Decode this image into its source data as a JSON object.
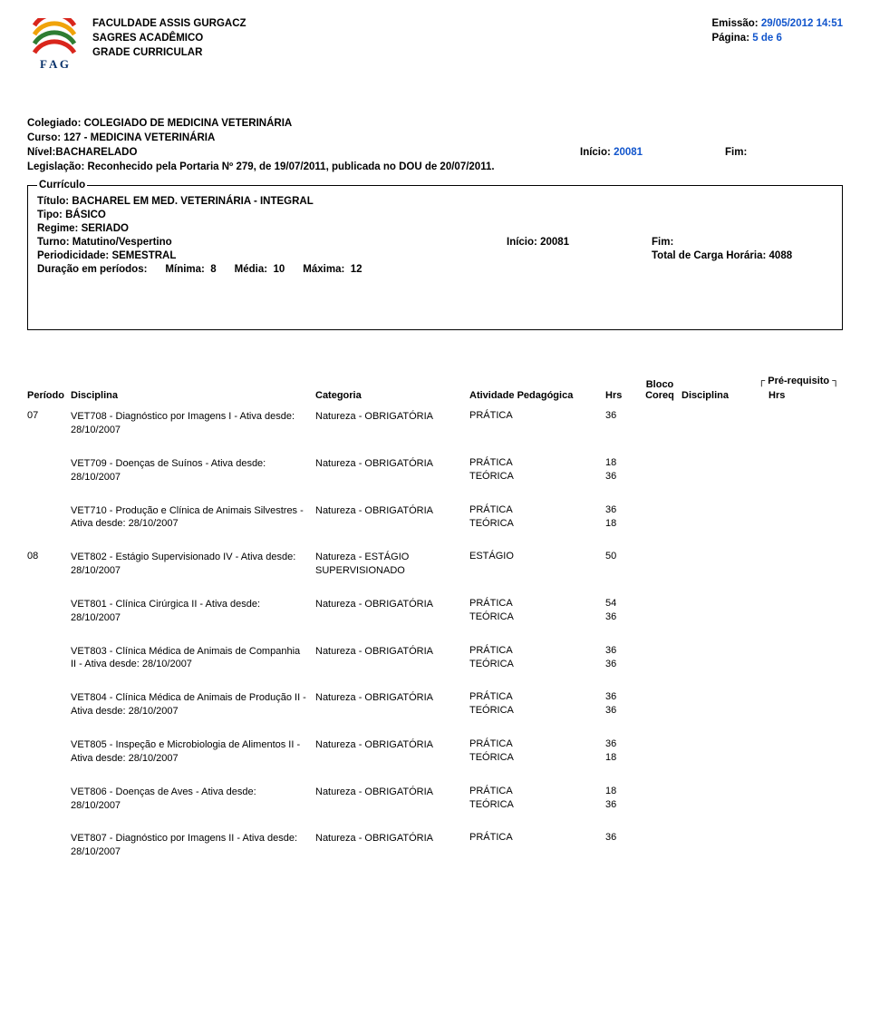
{
  "colors": {
    "link_blue": "#1155cc",
    "text": "#000000",
    "bg": "#ffffff"
  },
  "header": {
    "org": "FACULDADE ASSIS GURGACZ",
    "system": "SAGRES ACADÊMICO",
    "title": "GRADE CURRICULAR",
    "emissao_label": "Emissão:",
    "emissao_value": "29/05/2012 14:51",
    "pagina_label": "Página:",
    "pagina_value": "5 de 6",
    "logo_text": "F A G",
    "logo_arc_colors": [
      "#d9261c",
      "#f0a30a",
      "#2e7d32",
      "#d9261c"
    ]
  },
  "course": {
    "colegiado_label": "Colegiado:",
    "colegiado": "COLEGIADO DE MEDICINA VETERINÁRIA",
    "curso_label": "Curso:",
    "curso": "127 - MEDICINA VETERINÁRIA",
    "nivel_label": "Nível:",
    "nivel": "BACHARELADO",
    "inicio_label": "Início:",
    "inicio": "20081",
    "fim_label": "Fim:",
    "legis_label": "Legislação:",
    "legis": "Reconhecido pela Portaria Nº 279, de 19/07/2011, publicada no DOU de 20/07/2011."
  },
  "curriculo": {
    "legend": "Currículo",
    "titulo_label": "Título:",
    "titulo": "BACHAREL EM MED. VETERINÁRIA - INTEGRAL",
    "tipo_label": "Tipo:",
    "tipo": "BÁSICO",
    "regime_label": "Regime:",
    "regime": "SERIADO",
    "turno_label": "Turno:",
    "turno": "Matutino/Vespertino",
    "inicio_label": "Início:",
    "inicio": "20081",
    "fim_label": "Fim:",
    "period_label": "Periodicidade:",
    "period": "SEMESTRAL",
    "carga_label": "Total de Carga Horária:",
    "carga": "4088",
    "dur_label": "Duração em períodos:",
    "minima_label": "Mínima:",
    "minima": "8",
    "media_label": "Média:",
    "media": "10",
    "maxima_label": "Máxima:",
    "maxima": "12"
  },
  "table": {
    "bloco_top": "Bloco",
    "pre_req": "Pré-requisito",
    "cols": {
      "periodo": "Período",
      "disciplina": "Disciplina",
      "categoria": "Categoria",
      "atividade": "Atividade Pedagógica",
      "hrs": "Hrs",
      "coreq": "Coreq",
      "disciplina2": "Disciplina",
      "hrs2": "Hrs"
    }
  },
  "labels": {
    "pratica": "PRÁTICA",
    "teorica": "TEÓRICA",
    "estagio": "ESTÁGIO"
  },
  "rows": [
    {
      "periodo": "07",
      "disc": "VET708 - Diagnóstico por Imagens I - Ativa desde: 28/10/2007",
      "cat": "Natureza - OBRIGATÓRIA",
      "ativ": [
        {
          "t": "PRÁTICA",
          "h": "36"
        }
      ]
    },
    {
      "periodo": "",
      "disc": "VET709 - Doenças de Suínos - Ativa desde: 28/10/2007",
      "cat": "Natureza - OBRIGATÓRIA",
      "ativ": [
        {
          "t": "PRÁTICA",
          "h": "18"
        },
        {
          "t": "TEÓRICA",
          "h": "36"
        }
      ]
    },
    {
      "periodo": "",
      "disc": "VET710 - Produção e Clínica de Animais Silvestres - Ativa desde: 28/10/2007",
      "cat": "Natureza - OBRIGATÓRIA",
      "ativ": [
        {
          "t": "PRÁTICA",
          "h": "36"
        },
        {
          "t": "TEÓRICA",
          "h": "18"
        }
      ]
    },
    {
      "periodo": "08",
      "disc": "VET802 - Estágio Supervisionado IV - Ativa desde: 28/10/2007",
      "cat": "Natureza - ESTÁGIO SUPERVISIONADO",
      "ativ": [
        {
          "t": "ESTÁGIO",
          "h": "50"
        }
      ]
    },
    {
      "periodo": "",
      "disc": "VET801 - Clínica Cirúrgica II - Ativa desde: 28/10/2007",
      "cat": "Natureza - OBRIGATÓRIA",
      "ativ": [
        {
          "t": "PRÁTICA",
          "h": "54"
        },
        {
          "t": "TEÓRICA",
          "h": "36"
        }
      ]
    },
    {
      "periodo": "",
      "disc": "VET803 - Clínica Médica de Animais de Companhia II - Ativa desde: 28/10/2007",
      "cat": "Natureza - OBRIGATÓRIA",
      "ativ": [
        {
          "t": "PRÁTICA",
          "h": "36"
        },
        {
          "t": "TEÓRICA",
          "h": "36"
        }
      ]
    },
    {
      "periodo": "",
      "disc": "VET804 - Clínica Médica de Animais de Produção II - Ativa desde: 28/10/2007",
      "cat": "Natureza - OBRIGATÓRIA",
      "ativ": [
        {
          "t": "PRÁTICA",
          "h": "36"
        },
        {
          "t": "TEÓRICA",
          "h": "36"
        }
      ]
    },
    {
      "periodo": "",
      "disc": "VET805 - Inspeção e Microbiologia de Alimentos II - Ativa desde: 28/10/2007",
      "cat": "Natureza - OBRIGATÓRIA",
      "ativ": [
        {
          "t": "PRÁTICA",
          "h": "36"
        },
        {
          "t": "TEÓRICA",
          "h": "18"
        }
      ]
    },
    {
      "periodo": "",
      "disc": "VET806 - Doenças de Aves - Ativa desde: 28/10/2007",
      "cat": "Natureza - OBRIGATÓRIA",
      "ativ": [
        {
          "t": "PRÁTICA",
          "h": "18"
        },
        {
          "t": "TEÓRICA",
          "h": "36"
        }
      ]
    },
    {
      "periodo": "",
      "disc": "VET807 - Diagnóstico por Imagens II - Ativa desde: 28/10/2007",
      "cat": "Natureza - OBRIGATÓRIA",
      "ativ": [
        {
          "t": "PRÁTICA",
          "h": "36"
        }
      ]
    }
  ]
}
